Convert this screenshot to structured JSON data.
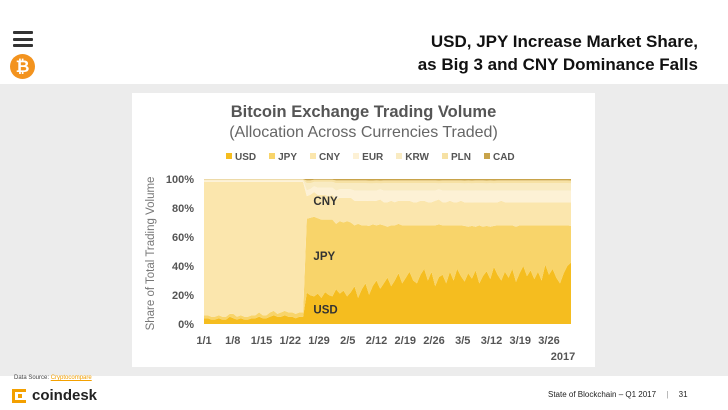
{
  "slide": {
    "title_line1": "USD, JPY Increase Market Share,",
    "title_line2": "as Big 3 and CNY Dominance Falls",
    "source_label": "Data Source:",
    "source_link": "Cryptocompare",
    "brand": "coindesk",
    "footer": "State of Blockchain – Q1 2017",
    "page_number": "31"
  },
  "chart_data": {
    "type": "area",
    "title": "Bitcoin Exchange Trading Volume",
    "subtitle": "(Allocation Across Currencies Traded)",
    "ylabel": "Share of Total Trading Volume",
    "ylim": [
      0,
      100
    ],
    "yticks": [
      "0%",
      "20%",
      "40%",
      "60%",
      "80%",
      "100%"
    ],
    "xticks": [
      "1/1",
      "1/8",
      "1/15",
      "1/22",
      "1/29",
      "2/5",
      "2/12",
      "2/19",
      "2/26",
      "3/5",
      "3/12",
      "3/19",
      "3/26"
    ],
    "xlabel_year": "2017",
    "stacked": true,
    "legend": [
      {
        "name": "USD",
        "color": "#f5bd1f"
      },
      {
        "name": "JPY",
        "color": "#f8d46a"
      },
      {
        "name": "CNY",
        "color": "#fbe6ad"
      },
      {
        "name": "EUR",
        "color": "#fdf1d5"
      },
      {
        "name": "KRW",
        "color": "#f9ebc2"
      },
      {
        "name": "PLN",
        "color": "#f6e1a4"
      },
      {
        "name": "CAD",
        "color": "#c8a34a"
      }
    ],
    "annotations": [
      {
        "text": "CNY",
        "x": 29,
        "y": 85
      },
      {
        "text": "JPY",
        "x": 29,
        "y": 47
      },
      {
        "text": "USD",
        "x": 29,
        "y": 10
      }
    ],
    "series": [
      {
        "name": "USD",
        "values": [
          4,
          4,
          3,
          3,
          4,
          3,
          3,
          5,
          4,
          3,
          4,
          3,
          3,
          4,
          4,
          5,
          4,
          4,
          5,
          6,
          5,
          5,
          6,
          5,
          5,
          4,
          5,
          5,
          22,
          20,
          19,
          21,
          18,
          22,
          20,
          19,
          24,
          21,
          23,
          19,
          22,
          26,
          18,
          24,
          28,
          20,
          26,
          30,
          24,
          28,
          32,
          26,
          30,
          35,
          28,
          32,
          36,
          30,
          28,
          34,
          38,
          30,
          36,
          26,
          32,
          34,
          28,
          36,
          30,
          38,
          33,
          29,
          35,
          31,
          37,
          28,
          33,
          36,
          31,
          39,
          34,
          30,
          36,
          32,
          38,
          29,
          35,
          40,
          33,
          37,
          31,
          36,
          30,
          41,
          34,
          38,
          32,
          28,
          35,
          40,
          42
        ]
      },
      {
        "name": "JPY",
        "values": [
          2,
          2,
          2,
          2,
          2,
          2,
          2,
          2,
          3,
          2,
          2,
          2,
          2,
          2,
          2,
          3,
          2,
          2,
          3,
          3,
          2,
          3,
          3,
          3,
          3,
          3,
          3,
          3,
          52,
          54,
          55,
          52,
          54,
          50,
          52,
          53,
          45,
          50,
          47,
          52,
          48,
          42,
          51,
          44,
          40,
          47,
          42,
          38,
          44,
          40,
          35,
          42,
          38,
          34,
          40,
          36,
          32,
          38,
          40,
          34,
          30,
          38,
          32,
          42,
          36,
          34,
          40,
          32,
          38,
          30,
          35,
          38,
          32,
          36,
          30,
          40,
          34,
          31,
          36,
          28,
          34,
          38,
          32,
          36,
          30,
          38,
          33,
          28,
          35,
          31,
          37,
          32,
          38,
          27,
          34,
          30,
          36,
          40,
          33,
          28,
          25
        ]
      },
      {
        "name": "CNY",
        "values": [
          92,
          92,
          93,
          93,
          92,
          93,
          93,
          91,
          91,
          93,
          92,
          93,
          93,
          92,
          92,
          90,
          92,
          92,
          90,
          89,
          91,
          90,
          89,
          90,
          90,
          91,
          90,
          90,
          16,
          16,
          17,
          16,
          17,
          17,
          16,
          17,
          17,
          16,
          17,
          16,
          17,
          17,
          16,
          17,
          17,
          17,
          16,
          17,
          17,
          16,
          17,
          17,
          16,
          16,
          17,
          17,
          17,
          16,
          16,
          17,
          17,
          16,
          16,
          17,
          17,
          16,
          16,
          17,
          16,
          16,
          17,
          16,
          17,
          16,
          17,
          16,
          17,
          16,
          17,
          16,
          16,
          17,
          16,
          16,
          16,
          17,
          16,
          16,
          16,
          16,
          16,
          16,
          16,
          16,
          16,
          16,
          16,
          16,
          16,
          16,
          16
        ]
      },
      {
        "name": "EUR",
        "values": [
          1,
          1,
          1,
          1,
          1,
          1,
          1,
          1,
          1,
          1,
          1,
          1,
          1,
          1,
          1,
          1,
          1,
          1,
          1,
          1,
          1,
          1,
          1,
          1,
          1,
          1,
          1,
          1,
          4,
          4,
          4,
          5,
          5,
          5,
          6,
          5,
          6,
          6,
          6,
          6,
          6,
          7,
          7,
          7,
          7,
          7,
          7,
          7,
          7,
          8,
          8,
          7,
          8,
          7,
          7,
          7,
          7,
          8,
          8,
          7,
          7,
          8,
          8,
          7,
          7,
          8,
          8,
          7,
          8,
          8,
          7,
          8,
          8,
          8,
          8,
          8,
          8,
          8,
          8,
          8,
          8,
          7,
          8,
          8,
          8,
          8,
          8,
          8,
          8,
          8,
          8,
          8,
          8,
          8,
          8,
          8,
          8,
          8,
          8,
          8,
          8
        ]
      },
      {
        "name": "KRW",
        "values": [
          0.5,
          0.5,
          0.5,
          0.5,
          0.5,
          0.5,
          0.5,
          0.5,
          0.5,
          0.5,
          0.5,
          0.5,
          0.5,
          0.5,
          0.5,
          0.5,
          0.5,
          0.5,
          0.5,
          0.5,
          0.5,
          0.5,
          0.5,
          0.5,
          0.5,
          0.5,
          0.5,
          0.5,
          5,
          4,
          3,
          4,
          4,
          4,
          4,
          4,
          5,
          4,
          4,
          4,
          4,
          5,
          5,
          5,
          5,
          5,
          5,
          5,
          4,
          5,
          5,
          5,
          5,
          5,
          5,
          5,
          5,
          5,
          5,
          5,
          5,
          5,
          5,
          5,
          4,
          5,
          5,
          5,
          5,
          5,
          5,
          5,
          5,
          5,
          5,
          5,
          5,
          5,
          5,
          5,
          5,
          5,
          5,
          5,
          5,
          5,
          5,
          5,
          5,
          5,
          5,
          5,
          5,
          5,
          5,
          5,
          5,
          5,
          5,
          5,
          5
        ]
      },
      {
        "name": "PLN",
        "values": [
          0.3,
          0.3,
          0.3,
          0.3,
          0.3,
          0.3,
          0.3,
          0.3,
          0.3,
          0.3,
          0.3,
          0.3,
          0.3,
          0.3,
          0.3,
          0.3,
          0.3,
          0.3,
          0.3,
          0.3,
          0.3,
          0.3,
          0.3,
          0.3,
          0.3,
          0.3,
          0.3,
          0.3,
          2,
          2,
          1.5,
          1.5,
          1.5,
          1.5,
          1.5,
          1.5,
          2,
          2,
          2,
          2,
          2,
          2,
          2,
          2,
          2,
          2,
          2,
          2,
          2,
          2,
          2,
          2,
          2,
          2,
          2,
          2,
          2,
          2,
          2,
          2,
          2,
          2,
          2,
          2,
          2,
          2,
          2,
          2,
          2,
          2,
          2,
          2,
          2,
          2,
          2,
          2,
          2,
          2,
          2,
          2,
          2,
          2,
          2,
          2,
          2,
          2,
          2,
          2,
          2,
          2,
          2,
          2,
          2,
          2,
          2,
          2,
          2,
          2,
          2,
          2,
          2
        ]
      },
      {
        "name": "CAD",
        "values": [
          0.2,
          0.2,
          0.2,
          0.2,
          0.2,
          0.2,
          0.2,
          0.2,
          0.2,
          0.2,
          0.2,
          0.2,
          0.2,
          0.2,
          0.2,
          0.2,
          0.2,
          0.2,
          0.2,
          0.2,
          0.2,
          0.2,
          0.2,
          0.2,
          0.2,
          0.2,
          0.2,
          0.2,
          1,
          1,
          0.5,
          0.5,
          0.5,
          0.5,
          0.5,
          0.5,
          1,
          1,
          1,
          1,
          1,
          1,
          1,
          1,
          1,
          1,
          1,
          1,
          1,
          1,
          1,
          1,
          1,
          1,
          1,
          1,
          1,
          1,
          1,
          1,
          1,
          1,
          1,
          1,
          1,
          1,
          1,
          1,
          1,
          1,
          1,
          1,
          1,
          1,
          1,
          1,
          1,
          1,
          1,
          1,
          1,
          1,
          1,
          1,
          1,
          1,
          1,
          1,
          1,
          1,
          1,
          1,
          1,
          1,
          1,
          1,
          1,
          1,
          1,
          1,
          1
        ]
      }
    ]
  }
}
